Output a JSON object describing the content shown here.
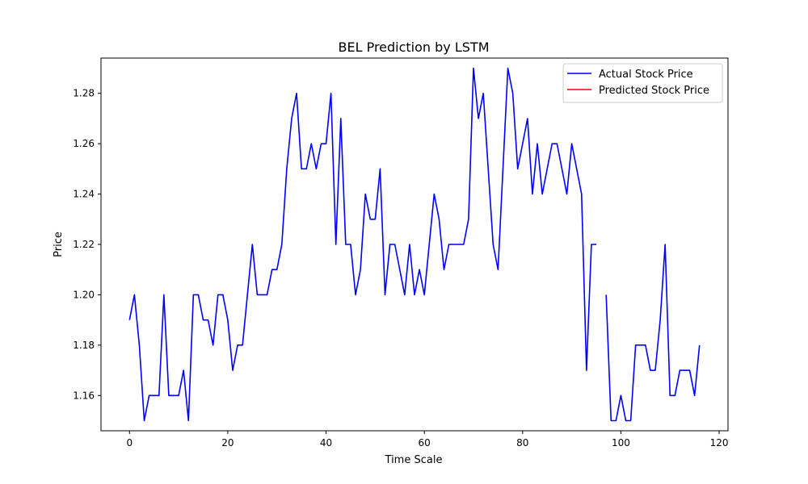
{
  "chart_data": {
    "type": "line",
    "title": "BEL Prediction by LSTM",
    "xlabel": "Time Scale",
    "ylabel": "Price",
    "xlim": [
      -5.8,
      121.8
    ],
    "ylim": [
      1.146,
      1.294
    ],
    "xticks": [
      0,
      20,
      40,
      60,
      80,
      100,
      120
    ],
    "yticks": [
      1.16,
      1.18,
      1.2,
      1.22,
      1.24,
      1.26,
      1.28
    ],
    "ytick_labels": [
      "1.16",
      "1.18",
      "1.20",
      "1.22",
      "1.24",
      "1.26",
      "1.28"
    ],
    "grid": false,
    "legend_position": "top-right",
    "series": [
      {
        "name": "Actual Stock Price",
        "color": "#0000ff",
        "x": [
          0,
          1,
          2,
          3,
          4,
          5,
          6,
          7,
          8,
          9,
          10,
          11,
          12,
          13,
          14,
          15,
          16,
          17,
          18,
          19,
          20,
          21,
          22,
          23,
          24,
          25,
          26,
          27,
          28,
          29,
          30,
          31,
          32,
          33,
          34,
          35,
          36,
          37,
          38,
          39,
          40,
          41,
          42,
          43,
          44,
          45,
          46,
          47,
          48,
          49,
          50,
          51,
          52,
          53,
          54,
          55,
          56,
          57,
          58,
          59,
          60,
          61,
          62,
          63,
          64,
          65,
          66,
          67,
          68,
          69,
          70,
          71,
          72,
          73,
          74,
          75,
          76,
          77,
          78,
          79,
          80,
          81,
          82,
          83,
          84,
          85,
          86,
          87,
          88,
          89,
          90,
          91,
          92,
          93,
          94,
          95,
          96,
          97,
          98,
          99,
          100,
          101,
          102,
          103,
          104,
          105,
          106,
          107,
          108,
          109,
          110,
          111,
          112,
          113,
          114,
          115,
          116
        ],
        "values": [
          1.19,
          1.2,
          1.18,
          1.15,
          1.16,
          1.16,
          1.16,
          1.2,
          1.16,
          1.16,
          1.16,
          1.17,
          1.15,
          1.2,
          1.2,
          1.19,
          1.19,
          1.18,
          1.2,
          1.2,
          1.19,
          1.17,
          1.18,
          1.18,
          1.2,
          1.22,
          1.2,
          1.2,
          1.2,
          1.21,
          1.21,
          1.22,
          1.25,
          1.27,
          1.28,
          1.25,
          1.25,
          1.26,
          1.25,
          1.26,
          1.26,
          1.28,
          1.22,
          1.27,
          1.22,
          1.22,
          1.2,
          1.21,
          1.24,
          1.23,
          1.23,
          1.25,
          1.2,
          1.22,
          1.22,
          1.21,
          1.2,
          1.22,
          1.2,
          1.21,
          1.2,
          1.22,
          1.24,
          1.23,
          1.21,
          1.22,
          1.22,
          1.22,
          1.22,
          1.23,
          1.29,
          1.27,
          1.28,
          1.25,
          1.22,
          1.21,
          1.25,
          1.29,
          1.28,
          1.25,
          1.26,
          1.27,
          1.24,
          1.26,
          1.24,
          1.25,
          1.26,
          1.26,
          1.25,
          1.24,
          1.26,
          1.25,
          1.24,
          1.17,
          1.22,
          1.22,
          null,
          1.2,
          1.15,
          1.15,
          1.16,
          1.15,
          1.15,
          1.18,
          1.18,
          1.18,
          1.17,
          1.17,
          1.19,
          1.22,
          1.16,
          1.16,
          1.17,
          1.17,
          1.17,
          1.16,
          1.18
        ]
      },
      {
        "name": "Predicted Stock Price",
        "color": "#ff0000",
        "x": [],
        "values": []
      }
    ]
  }
}
